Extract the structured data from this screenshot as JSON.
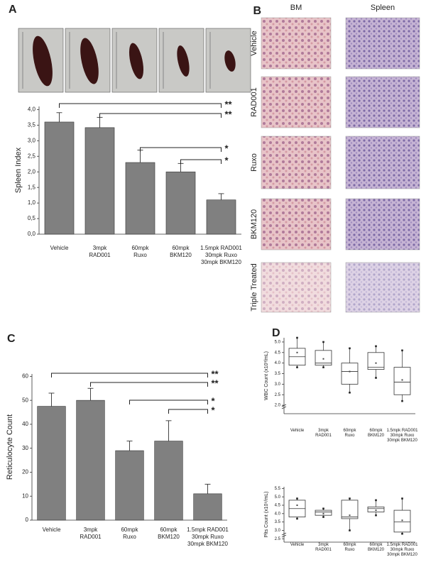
{
  "chart_data": [
    {
      "type": "bar",
      "panel_label": "A",
      "y_label": "Spleen  Index",
      "categories": [
        "Vehicle",
        "3mpk\nRAD001",
        "60mpk\nRuxo",
        "60mpk\nBKM120",
        "1.5mpk RAD001\n30mpk Ruxo\n30mpk BKM120"
      ],
      "values": [
        3.6,
        3.42,
        2.3,
        2.0,
        1.1
      ],
      "errors": [
        0.3,
        0.33,
        0.4,
        0.27,
        0.2
      ],
      "color": "#808080",
      "ylim": [
        0,
        4.1
      ],
      "yticks": [
        {
          "value": 0,
          "label": "0,0"
        },
        {
          "value": 0.5,
          "label": "0,5"
        },
        {
          "value": 1,
          "label": "1,0"
        },
        {
          "value": 1.5,
          "label": "1,5"
        },
        {
          "value": 2,
          "label": "2,0"
        },
        {
          "value": 2.5,
          "label": "2,5"
        },
        {
          "value": 3,
          "label": "3,0"
        },
        {
          "value": 3.5,
          "label": "3,5"
        },
        {
          "value": 4,
          "label": "4,0"
        }
      ],
      "comparisons": [
        {
          "from": 0,
          "to": 4,
          "label": "**"
        },
        {
          "from": 1,
          "to": 4,
          "label": "**"
        },
        {
          "from": 2,
          "to": 4,
          "label": "*"
        },
        {
          "from": 3,
          "to": 4,
          "label": "*"
        }
      ]
    },
    {
      "type": "bar",
      "panel_label": "C",
      "y_label": "Reticulocyte Count",
      "categories": [
        "Vehicle",
        "3mpk\nRAD001",
        "60mpk\nRuxo",
        "60mpk\nBKM120",
        "1.5mpk RAD001\n30mpk Ruxo\n30mpk BKM120"
      ],
      "values": [
        47.5,
        50,
        29,
        33,
        11
      ],
      "errors": [
        5.5,
        5,
        4,
        8.5,
        4
      ],
      "color": "#808080",
      "ylim": [
        0,
        61
      ],
      "yticks": [
        0,
        10,
        20,
        30,
        40,
        50,
        60
      ],
      "comparisons": [
        {
          "from": 0,
          "to": 4,
          "label": "**"
        },
        {
          "from": 1,
          "to": 4,
          "label": "**"
        },
        {
          "from": 2,
          "to": 4,
          "label": "*"
        },
        {
          "from": 3,
          "to": 4,
          "label": "*"
        }
      ]
    },
    {
      "type": "box",
      "panel_label": "D",
      "y_label": "WBC Count (x10³/mL)",
      "categories": [
        "Vehicle",
        "3mpk\nRAD001",
        "60mpk\nRuxo",
        "60mpk\nBKM120",
        "1.5mpk RAD001\n30mpk Ruxo\n30mpk BKM120"
      ],
      "boxes": [
        {
          "whisker_low": 3.8,
          "q1": 3.9,
          "median": 4.3,
          "q3": 4.7,
          "whisker_high": 5.2,
          "mean": 4.5
        },
        {
          "whisker_low": 3.8,
          "q1": 3.9,
          "median": 4.0,
          "q3": 4.6,
          "whisker_high": 5.0,
          "mean": 4.2
        },
        {
          "whisker_low": 2.6,
          "q1": 3.0,
          "median": 3.6,
          "q3": 4.0,
          "whisker_high": 4.7,
          "mean": 3.6
        },
        {
          "whisker_low": 3.3,
          "q1": 3.7,
          "median": 3.8,
          "q3": 4.5,
          "whisker_high": 4.8,
          "mean": 4.0
        },
        {
          "whisker_low": 2.2,
          "q1": 2.5,
          "median": 3.1,
          "q3": 3.8,
          "whisker_high": 4.6,
          "mean": 3.2
        }
      ],
      "ylim": [
        1.6,
        5.2
      ],
      "yticks": [
        {
          "value": 2,
          "label": "2.0"
        },
        {
          "value": 2.5,
          "label": "2.5"
        },
        {
          "value": 3,
          "label": "3.0"
        },
        {
          "value": 3.5,
          "label": "3.5"
        },
        {
          "value": 4,
          "label": "4.0"
        },
        {
          "value": 4.5,
          "label": "4.5"
        },
        {
          "value": 5,
          "label": "5.0"
        }
      ]
    },
    {
      "type": "box",
      "y_label": "Plts Count (x10⁹/mL)",
      "categories": [
        "Vehicle",
        "3mpk\nRAD001",
        "60mpk\nRuxo",
        "60mpk\nBKM120",
        "1.5mpk RAD001\n30mpk Ruxo\n30mpk BKM120"
      ],
      "boxes": [
        {
          "whisker_low": 3.7,
          "q1": 3.8,
          "median": 4.3,
          "q3": 4.8,
          "whisker_high": 4.9,
          "mean": 4.5
        },
        {
          "whisker_low": 3.8,
          "q1": 3.9,
          "median": 4.1,
          "q3": 4.2,
          "whisker_high": 4.3,
          "mean": 4.0
        },
        {
          "whisker_low": 3.0,
          "q1": 3.7,
          "median": 3.8,
          "q3": 4.8,
          "whisker_high": 4.9,
          "mean": 3.9
        },
        {
          "whisker_low": 3.9,
          "q1": 4.1,
          "median": 4.3,
          "q3": 4.4,
          "whisker_high": 4.8,
          "mean": 4.2
        },
        {
          "whisker_low": 2.8,
          "q1": 2.9,
          "median": 3.5,
          "q3": 4.2,
          "whisker_high": 4.9,
          "mean": 3.6
        }
      ],
      "ylim": [
        2.3,
        5.6
      ],
      "yticks": [
        {
          "value": 2.5,
          "label": "2.5"
        },
        {
          "value": 3,
          "label": "3.0"
        },
        {
          "value": 3.5,
          "label": "3.5"
        },
        {
          "value": 4,
          "label": "4.0"
        },
        {
          "value": 4.5,
          "label": "4.5"
        },
        {
          "value": 5,
          "label": "5.0"
        },
        {
          "value": 5.5,
          "label": "5.5"
        }
      ]
    }
  ],
  "histology": {
    "panel_label": "B",
    "columns": [
      "BM",
      "Spleen"
    ],
    "rows": [
      "Vehicle",
      "RAD001",
      "Ruxo",
      "BKM120",
      "Triple Treated"
    ]
  }
}
